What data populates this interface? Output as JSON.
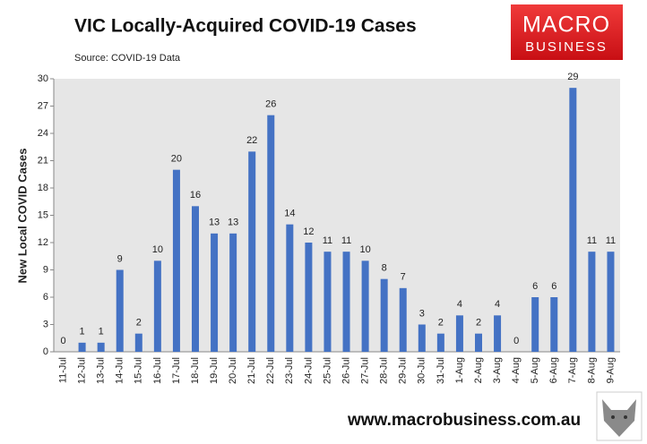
{
  "chart_data": {
    "type": "bar",
    "title": "VIC Locally-Acquired COVID-19 Cases",
    "subtitle": "Source: COVID-19 Data",
    "y_label": "New Local COVID Cases",
    "categories": [
      "11-Jul",
      "12-Jul",
      "13-Jul",
      "14-Jul",
      "15-Jul",
      "16-Jul",
      "17-Jul",
      "18-Jul",
      "19-Jul",
      "20-Jul",
      "21-Jul",
      "22-Jul",
      "23-Jul",
      "24-Jul",
      "25-Jul",
      "26-Jul",
      "27-Jul",
      "28-Jul",
      "29-Jul",
      "30-Jul",
      "31-Jul",
      "1-Aug",
      "2-Aug",
      "3-Aug",
      "4-Aug",
      "5-Aug",
      "6-Aug",
      "7-Aug",
      "8-Aug",
      "9-Aug"
    ],
    "values": [
      0,
      1,
      1,
      9,
      2,
      10,
      20,
      16,
      13,
      13,
      22,
      26,
      14,
      12,
      11,
      11,
      10,
      8,
      7,
      3,
      2,
      4,
      2,
      4,
      0,
      6,
      6,
      29,
      11,
      11
    ],
    "color": "#4472c4",
    "ylim": [
      0,
      30
    ],
    "yticks": [
      0,
      3,
      6,
      9,
      12,
      15,
      18,
      21,
      24,
      27,
      30
    ],
    "grid": false
  },
  "branding": {
    "logo_line1": "MACRO",
    "logo_line2": "BUSINESS",
    "url": "www.macrobusiness.com.au"
  }
}
